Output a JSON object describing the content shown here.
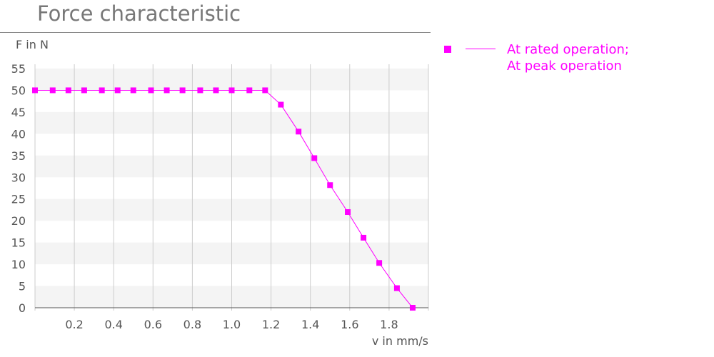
{
  "chart_data": {
    "type": "line",
    "title": "Force characteristic",
    "xlabel": "v in mm/s",
    "ylabel": "F in N",
    "xlim": [
      0,
      2.0
    ],
    "ylim": [
      0,
      55
    ],
    "x_ticks": [
      "0.2",
      "0.4",
      "0.6",
      "0.8",
      "1.0",
      "1.2",
      "1.4",
      "1.6",
      "1.8"
    ],
    "y_ticks": [
      "0",
      "5",
      "10",
      "15",
      "20",
      "25",
      "30",
      "35",
      "40",
      "45",
      "50",
      "55"
    ],
    "grid": "vertical lines, alternating horizontal bands",
    "legend_position": "right",
    "color": "#ff00ff",
    "series": [
      {
        "name": "At rated operation; At peak operation",
        "legend_lines": [
          "At rated operation;",
          "At peak operation"
        ],
        "x": [
          0.0,
          0.09,
          0.17,
          0.25,
          0.34,
          0.42,
          0.5,
          0.59,
          0.67,
          0.75,
          0.84,
          0.92,
          1.0,
          1.09,
          1.17,
          1.25,
          1.34,
          1.42,
          1.5,
          1.59,
          1.67,
          1.75,
          1.84,
          1.92
        ],
        "y": [
          50,
          50,
          50,
          50,
          50,
          50,
          50,
          50,
          50,
          50,
          50,
          50,
          50,
          50,
          50,
          46.7,
          40.5,
          34.4,
          28.2,
          22.0,
          16.1,
          10.3,
          4.5,
          0
        ]
      }
    ]
  }
}
